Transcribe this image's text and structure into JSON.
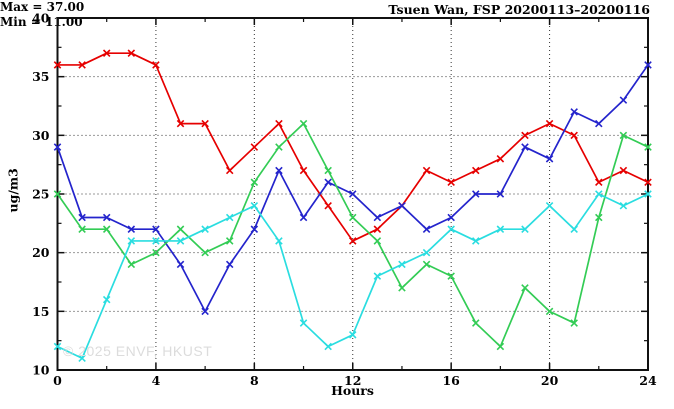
{
  "chart_data": {
    "type": "line",
    "title": "Tsuen Wan, FSP 20200113–20200116",
    "xlabel": "Hours",
    "ylabel": "ug/m3",
    "xlim": [
      0,
      24
    ],
    "ylim": [
      10,
      40
    ],
    "x_ticks_major": [
      0,
      4,
      8,
      12,
      16,
      20,
      24
    ],
    "x_ticks_minor": [
      2,
      6,
      10,
      14,
      18,
      22
    ],
    "y_ticks_major": [
      10,
      15,
      20,
      25,
      30,
      35,
      40
    ],
    "y_ticks_minor": [
      12.5,
      17.5,
      22.5,
      27.5,
      32.5,
      37.5
    ],
    "grid": "dotted-at-major-ticks",
    "legend_position": "top-right-inside",
    "annotations": {
      "max_label": "Max = 37.00",
      "min_label": "Min = 11.00"
    },
    "watermark": "© 2025 ENVF, HKUST",
    "x": [
      0,
      1,
      2,
      3,
      4,
      5,
      6,
      7,
      8,
      9,
      10,
      11,
      12,
      13,
      14,
      15,
      16,
      17,
      18,
      19,
      20,
      21,
      22,
      23,
      24
    ],
    "series": [
      {
        "name": "red-line",
        "color": "#e60000",
        "values": [
          36,
          36,
          37,
          37,
          36,
          31,
          31,
          27,
          29,
          31,
          27,
          24,
          21,
          22,
          24,
          27,
          26,
          27,
          28,
          30,
          31,
          30,
          26,
          27,
          26
        ]
      },
      {
        "name": "blue-line",
        "color": "#2424cc",
        "values": [
          29,
          23,
          23,
          22,
          22,
          19,
          15,
          19,
          22,
          27,
          23,
          26,
          25,
          23,
          24,
          22,
          23,
          25,
          25,
          29,
          28,
          32,
          31,
          33,
          36
        ]
      },
      {
        "name": "green-line",
        "color": "#33cc55",
        "values": [
          25,
          22,
          22,
          19,
          20,
          22,
          20,
          21,
          26,
          29,
          31,
          27,
          23,
          21,
          17,
          19,
          18,
          14,
          12,
          17,
          15,
          14,
          23,
          30,
          29
        ]
      },
      {
        "name": "cyan-line",
        "color": "#2adde0",
        "values": [
          12,
          11,
          16,
          21,
          21,
          21,
          22,
          23,
          24,
          21,
          14,
          12,
          13,
          18,
          19,
          20,
          22,
          21,
          22,
          22,
          24,
          22,
          25,
          24,
          25
        ]
      }
    ]
  }
}
